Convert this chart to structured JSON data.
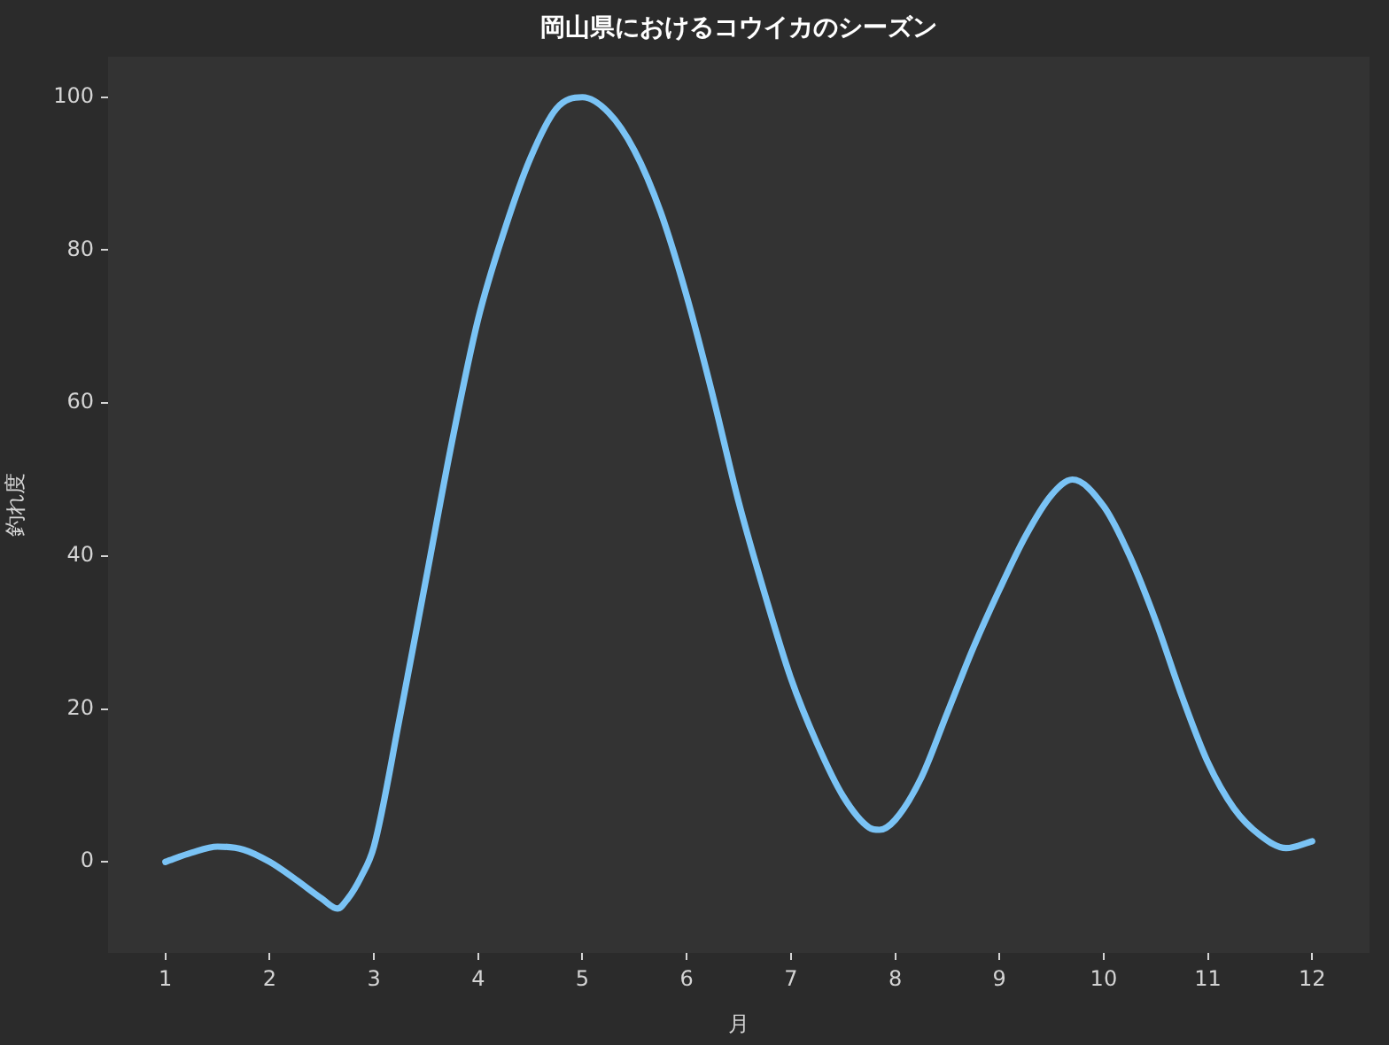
{
  "chart_data": {
    "type": "line",
    "title": "岡山県におけるコウイカのシーズン",
    "xlabel": "月",
    "ylabel": "釣れ度",
    "x": [
      1,
      1.25,
      1.5,
      1.75,
      2,
      2.25,
      2.5,
      2.65,
      2.75,
      2.875,
      3,
      3.25,
      3.5,
      3.75,
      4,
      4.25,
      4.5,
      4.75,
      5,
      5.25,
      5.5,
      5.75,
      6,
      6.25,
      6.5,
      6.75,
      7,
      7.25,
      7.5,
      7.75,
      7.85,
      8,
      8.25,
      8.5,
      8.75,
      9,
      9.25,
      9.5,
      9.7,
      10,
      10.25,
      10.5,
      10.75,
      11,
      11.25,
      11.5,
      11.75,
      12
    ],
    "series": [
      {
        "color": "#7ac3f5",
        "values": [
          0,
          1.2,
          2,
          1.6,
          0,
          -2.3,
          -4.8,
          -6.1,
          -4.8,
          -2,
          2,
          19,
          37,
          55,
          71,
          82.5,
          92,
          98.5,
          100,
          98,
          93,
          85,
          74,
          61,
          47,
          35,
          24,
          15.5,
          8.6,
          4.5,
          4.2,
          5.5,
          11,
          19.5,
          28,
          35.6,
          42.6,
          48,
          50,
          46.5,
          40,
          31.5,
          21.7,
          13,
          7,
          3.5,
          1.8,
          2.7
        ]
      }
    ],
    "xlim": [
      0.45,
      12.55
    ],
    "ylim": [
      -11.9,
      105.3
    ],
    "xticks": [
      1,
      2,
      3,
      4,
      5,
      6,
      7,
      8,
      9,
      10,
      11,
      12
    ],
    "yticks": [
      0,
      20,
      40,
      60,
      80,
      100
    ]
  }
}
